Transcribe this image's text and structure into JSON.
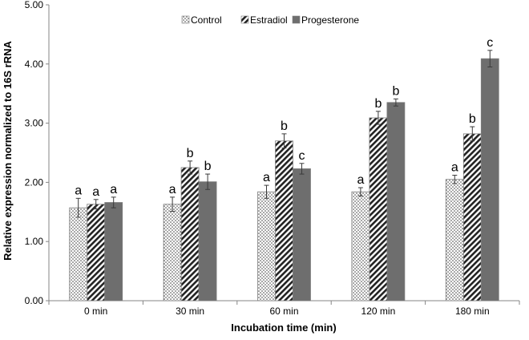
{
  "chart_data": {
    "type": "bar",
    "xlabel": "Incubation time (min)",
    "ylabel": "Relative expression normalized to 16S rRNA",
    "ylim": [
      0,
      5
    ],
    "yticks": [
      "0.00",
      "1.00",
      "2.00",
      "3.00",
      "4.00",
      "5.00"
    ],
    "categories": [
      "0 min",
      "30 min",
      "60 min",
      "120 min",
      "180 min"
    ],
    "legend_position": "top-center",
    "grid": false,
    "series": [
      {
        "name": "Control",
        "pattern": "dots",
        "values": [
          1.57,
          1.63,
          1.84,
          1.84,
          2.05
        ],
        "errors": [
          0.16,
          0.12,
          0.11,
          0.07,
          0.07
        ],
        "labels": [
          "a",
          "a",
          "a",
          "a",
          "a"
        ]
      },
      {
        "name": "Estradiol",
        "pattern": "diagonal-hatch",
        "values": [
          1.63,
          2.25,
          2.7,
          3.09,
          2.82
        ],
        "errors": [
          0.08,
          0.11,
          0.12,
          0.11,
          0.12
        ],
        "labels": [
          "a",
          "b",
          "b",
          "b",
          "b"
        ]
      },
      {
        "name": "Progesterone",
        "pattern": "solid",
        "color": "#6e6e6e",
        "values": [
          1.66,
          2.01,
          2.23,
          3.35,
          4.09
        ],
        "errors": [
          0.09,
          0.13,
          0.09,
          0.06,
          0.14
        ],
        "labels": [
          "a",
          "b",
          "c",
          "b",
          "c"
        ]
      }
    ]
  }
}
